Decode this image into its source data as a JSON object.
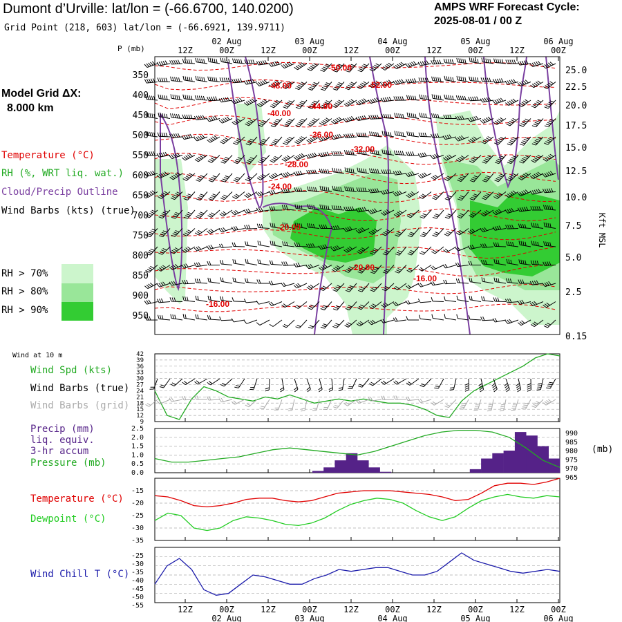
{
  "header": {
    "title": "Dumont d’Urville:  lat/lon = (-66.6700, 140.0200)",
    "subtitle": "Grid Point (218, 603) lat/lon = (-66.6921, 139.9711)",
    "cycle_line1": "AMPS WRF Forecast Cycle:",
    "cycle_line2": "2025-08-01 / 00  Z",
    "model_grid_label": "Model Grid ΔX:",
    "model_grid_value": "8.000 km"
  },
  "legend": {
    "temperature": "Temperature (°C)",
    "rh": "RH (%, WRT liq. wat.)",
    "cloud": "Cloud/Precip Outline",
    "wind": "Wind Barbs (kts) (true)",
    "rh_levels": [
      {
        "label": "RH > 70%",
        "color": "#ccf5cc"
      },
      {
        "label": "RH > 80%",
        "color": "#99e699"
      },
      {
        "label": "RH > 90%",
        "color": "#33cc33"
      }
    ]
  },
  "colors": {
    "temperature": "#e00000",
    "dewpoint": "#22cc22",
    "pressure": "#22aa22",
    "precip": "#552288",
    "cloud": "#7a3fa0",
    "windchill": "#1a1aaa",
    "wind_true": "#000000",
    "wind_grid": "#aaaaaa"
  },
  "time_axis": {
    "top_ticks": [
      "12Z",
      "00Z",
      "12Z",
      "00Z",
      "12Z",
      "00Z",
      "12Z",
      "00Z",
      "12Z",
      "00Z"
    ],
    "date_labels": [
      "02 Aug",
      "03 Aug",
      "04 Aug",
      "05 Aug",
      "06 Aug"
    ],
    "pressure_label": "P (mb)"
  },
  "chart_data": [
    {
      "type": "heatmap",
      "title": "",
      "ylabel": "P (mb)",
      "y2label": "Kft MSL",
      "pressure_ticks": [
        "350",
        "400",
        "450",
        "500",
        "550",
        "600",
        "650",
        "700",
        "750",
        "800",
        "850",
        "900",
        "950"
      ],
      "height_ticks": [
        "25.0",
        "22.5",
        "20.0",
        "17.5",
        "15.0",
        "12.5",
        "10.0",
        "7.5",
        "5.0",
        "2.5",
        "0.15"
      ],
      "ylim": [
        300,
        1000
      ],
      "temperature_labels": [
        "-50.00",
        "-52.00",
        "-48.00",
        "-44.00",
        "-40.00",
        "-36.00",
        "-32.00",
        "-28.00",
        "-24.00",
        "-20.00",
        "-20.00",
        "-16.00",
        "-16.00"
      ]
    },
    {
      "type": "line",
      "title": "Wind at 10 m",
      "series": [
        {
          "name": "Wind Spd (kts)",
          "values": [
            24,
            12,
            10,
            20,
            26,
            24,
            21,
            20,
            19,
            21,
            20,
            22,
            20,
            18,
            19,
            20,
            19,
            20,
            19,
            18,
            18,
            17,
            15,
            12,
            11,
            19,
            24,
            27,
            30,
            33,
            36,
            40,
            42,
            41
          ]
        },
        {
          "name": "Wind Barbs (true)"
        },
        {
          "name": "Wind Barbs (grid)"
        }
      ],
      "yticks": [
        "42",
        "39",
        "36",
        "33",
        "30",
        "27",
        "24",
        "21",
        "18",
        "15",
        "12",
        "9"
      ],
      "ylim": [
        9,
        42
      ]
    },
    {
      "type": "bar",
      "series": [
        {
          "name": "Precip (mm) liq. equiv. 3-hr accum",
          "values": [
            0,
            0,
            0,
            0,
            0,
            0,
            0,
            0,
            0,
            0,
            0,
            0,
            0,
            0,
            0.1,
            0.3,
            0.7,
            1.1,
            0.7,
            0.3,
            0.05,
            0,
            0,
            0,
            0,
            0,
            0,
            0,
            0.2,
            0.8,
            1.1,
            1.25,
            2.3,
            2.1,
            1.5,
            0.8
          ]
        },
        {
          "name": "Pressure (mb)",
          "values": [
            973,
            971,
            971,
            972,
            973,
            974,
            976,
            978,
            979,
            978,
            977,
            976,
            975,
            977,
            980,
            983,
            986,
            988,
            989,
            989,
            988,
            985,
            979,
            972,
            968
          ]
        }
      ],
      "yticks": [
        "2.5",
        "2.0",
        "1.5",
        "1.0",
        "0.5",
        "0.0"
      ],
      "y2ticks": [
        "990",
        "985",
        "980",
        "975",
        "970",
        "965"
      ],
      "y2label": "(mb)",
      "ylim": [
        0,
        2.5
      ],
      "y2lim": [
        965,
        990
      ]
    },
    {
      "type": "line",
      "series": [
        {
          "name": "Temperature (°C)",
          "values": [
            -17,
            -17.5,
            -19,
            -21,
            -21.5,
            -21,
            -20,
            -18.5,
            -18,
            -18,
            -19,
            -19.5,
            -19,
            -17.5,
            -16,
            -15.5,
            -15,
            -15,
            -15,
            -15.5,
            -16,
            -16.5,
            -17.5,
            -19,
            -18.5,
            -16,
            -13,
            -12,
            -12,
            -12.5,
            -11.5,
            -10
          ]
        },
        {
          "name": "Dewpoint (°C)",
          "values": [
            -27,
            -24,
            -25,
            -30,
            -31,
            -30,
            -27,
            -25.5,
            -26,
            -27,
            -28.5,
            -29,
            -28,
            -26,
            -23,
            -20.5,
            -19,
            -18,
            -18.5,
            -20,
            -23,
            -25.5,
            -27,
            -25.5,
            -22,
            -19,
            -17.5,
            -16.5,
            -17.5,
            -18,
            -17,
            -17.5
          ]
        }
      ],
      "yticks": [
        "-15",
        "-20",
        "-25",
        "-30",
        "-35"
      ],
      "ylim": [
        -35,
        -10
      ]
    },
    {
      "type": "line",
      "series": [
        {
          "name": "Wind Chill T (°C)",
          "values": [
            -45,
            -35,
            -31,
            -37,
            -48,
            -51,
            -50,
            -45,
            -40,
            -41,
            -43,
            -45,
            -45,
            -42,
            -40,
            -37,
            -38,
            -37,
            -36,
            -36,
            -38,
            -40,
            -40,
            -38,
            -33,
            -28,
            -32,
            -34,
            -36,
            -38,
            -39,
            -38,
            -37,
            -38
          ]
        }
      ],
      "yticks": [
        "-25",
        "-30",
        "-35",
        "-40",
        "-45",
        "-50",
        "-55"
      ],
      "ylim": [
        -55,
        -25
      ]
    }
  ],
  "bottom_axis": {
    "ticks": [
      "12Z",
      "00Z",
      "12Z",
      "00Z",
      "12Z",
      "00Z",
      "12Z",
      "00Z",
      "12Z",
      "00Z"
    ],
    "dates": [
      "02 Aug",
      "03 Aug",
      "04 Aug",
      "05 Aug",
      "06 Aug"
    ]
  },
  "labels": {
    "wind10m": "Wind at 10 m",
    "wind_spd": "Wind Spd (kts)",
    "wind_true": "Wind Barbs (true)",
    "wind_grid": "Wind Barbs (grid)",
    "precip1": "Precip (mm)",
    "precip2": "liq. equiv.",
    "precip3": "3-hr accum",
    "pressure": "Pressure (mb)",
    "pressure_unit": "(mb)",
    "temp": "Temperature (°C)",
    "dew": "Dewpoint (°C)",
    "windchill": "Wind Chill T (°C)",
    "kft": "Kft MSL"
  }
}
